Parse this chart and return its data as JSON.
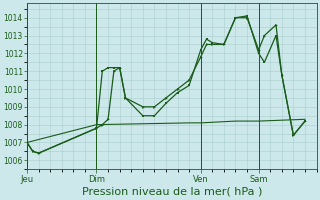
{
  "bg_color": "#cce8ea",
  "grid_color": "#aacccc",
  "line_color": "#1a5c1a",
  "xlabel": "Pression niveau de la mer( hPa )",
  "xlabel_fontsize": 8,
  "ylim": [
    1005.5,
    1014.8
  ],
  "yticks": [
    1006,
    1007,
    1008,
    1009,
    1010,
    1011,
    1012,
    1013,
    1014
  ],
  "xtick_labels": [
    "Jeu",
    "Dim",
    "Ven",
    "Sam"
  ],
  "xtick_positions": [
    0,
    24,
    60,
    80
  ],
  "vline_positions": [
    0,
    24,
    60,
    80
  ],
  "xlim": [
    0,
    100
  ],
  "curve1_x": [
    0,
    2,
    4,
    24,
    26,
    28,
    30,
    32,
    34,
    40,
    44,
    48,
    52,
    56,
    60,
    62,
    64,
    68,
    72,
    76,
    80,
    82,
    86,
    88,
    92,
    96
  ],
  "curve1_y": [
    1007.0,
    1006.5,
    1006.4,
    1007.8,
    1011.0,
    1011.2,
    1011.2,
    1011.2,
    1009.5,
    1008.5,
    1008.5,
    1009.2,
    1009.8,
    1010.2,
    1012.2,
    1012.8,
    1012.6,
    1012.5,
    1014.0,
    1014.1,
    1012.0,
    1011.5,
    1013.0,
    1010.8,
    1007.4,
    1008.2
  ],
  "curve2_x": [
    0,
    2,
    4,
    24,
    26,
    28,
    30,
    32,
    34,
    40,
    44,
    48,
    52,
    56,
    60,
    62,
    64,
    68,
    72,
    76,
    80,
    82,
    86,
    88,
    92,
    96
  ],
  "curve2_y": [
    1007.0,
    1006.5,
    1006.4,
    1007.8,
    1008.0,
    1008.3,
    1011.0,
    1011.2,
    1009.5,
    1009.0,
    1009.0,
    1009.5,
    1010.0,
    1010.5,
    1011.8,
    1012.5,
    1012.5,
    1012.5,
    1014.0,
    1014.0,
    1012.2,
    1013.0,
    1013.6,
    1010.8,
    1007.4,
    1008.2
  ],
  "curve3_x": [
    0,
    24,
    40,
    56,
    60,
    72,
    80,
    88,
    96
  ],
  "curve3_y": [
    1007.0,
    1008.0,
    1008.05,
    1008.1,
    1008.1,
    1008.2,
    1008.2,
    1008.25,
    1008.3
  ]
}
